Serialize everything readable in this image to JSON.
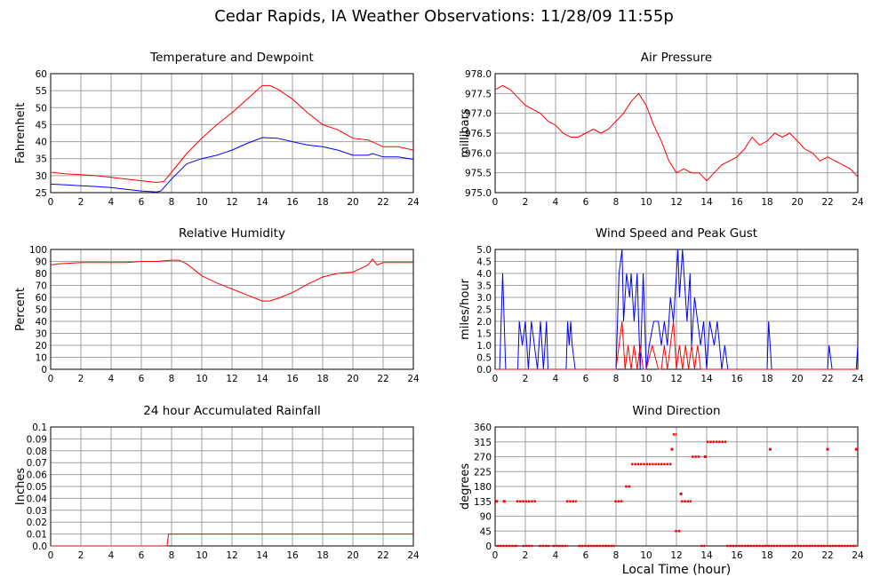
{
  "page": {
    "title": "Cedar Rapids, IA Weather Observations: 11/28/09 11:55p",
    "xlabel": "Local Time (hour)"
  },
  "colors": {
    "red": "#ff0000",
    "blue": "#0000ff",
    "grid": "#a0a0a0"
  },
  "chart_data": [
    {
      "id": "temp",
      "type": "line",
      "title": "Temperature and Dewpoint",
      "ylabel": "Fahrenheit",
      "xlim": [
        0,
        24
      ],
      "ylim": [
        25,
        60
      ],
      "xticks": [
        0,
        2,
        4,
        6,
        8,
        10,
        12,
        14,
        16,
        18,
        20,
        22,
        24
      ],
      "yticks": [
        25,
        30,
        35,
        40,
        45,
        50,
        55,
        60
      ],
      "grid": true,
      "series": [
        {
          "color": "#ff0000",
          "x": [
            0,
            1,
            2,
            3,
            4,
            5,
            6,
            7,
            7.5,
            8,
            9,
            10,
            11,
            12,
            13,
            14,
            14.5,
            15,
            16,
            17,
            18,
            19,
            20,
            21,
            22,
            23,
            24
          ],
          "y": [
            31,
            30.5,
            30.3,
            30,
            29.5,
            29,
            28.5,
            28,
            28.3,
            31,
            36.5,
            41,
            45,
            48.5,
            52.5,
            56.5,
            56.5,
            55.5,
            52.5,
            48.5,
            45,
            43.5,
            41,
            40.5,
            38.5,
            38.5,
            37.5
          ]
        },
        {
          "color": "#0000ff",
          "x": [
            0,
            1,
            2,
            3,
            4,
            5,
            6,
            7,
            7.3,
            8,
            9,
            10,
            11,
            12,
            13,
            14,
            15,
            16,
            17,
            18,
            19,
            20,
            21,
            21.3,
            22,
            23,
            24
          ],
          "y": [
            27.5,
            27.3,
            27,
            26.8,
            26.5,
            26,
            25.5,
            25.2,
            25.5,
            29,
            33.5,
            35,
            36,
            37.5,
            39.5,
            41.2,
            41,
            40,
            39,
            38.5,
            37.5,
            36,
            36,
            36.5,
            35.5,
            35.5,
            34.8
          ]
        }
      ]
    },
    {
      "id": "pressure",
      "type": "line",
      "title": "Air Pressure",
      "ylabel": "millibars",
      "xlim": [
        0,
        24
      ],
      "ylim": [
        975.0,
        978.0
      ],
      "xticks": [
        0,
        2,
        4,
        6,
        8,
        10,
        12,
        14,
        16,
        18,
        20,
        22,
        24
      ],
      "yticks": [
        "975.0",
        "975.5",
        "976.0",
        "976.5",
        "977.0",
        "977.5",
        "978.0"
      ],
      "grid": true,
      "series": [
        {
          "color": "#ff0000",
          "x": [
            0,
            0.5,
            1,
            1.5,
            2,
            2.5,
            3,
            3.5,
            4,
            4.5,
            5,
            5.5,
            6,
            6.5,
            7,
            7.5,
            8,
            8.5,
            9,
            9.5,
            10,
            10.5,
            11,
            11.5,
            12,
            12.5,
            13,
            13.5,
            14,
            14.5,
            15,
            15.5,
            16,
            16.5,
            17,
            17.5,
            18,
            18.5,
            19,
            19.5,
            20,
            20.5,
            21,
            21.5,
            22,
            22.5,
            23,
            23.5,
            24
          ],
          "y": [
            977.6,
            977.7,
            977.6,
            977.4,
            977.2,
            977.1,
            977.0,
            976.8,
            976.7,
            976.5,
            976.4,
            976.4,
            976.5,
            976.6,
            976.5,
            976.6,
            976.8,
            977.0,
            977.3,
            977.5,
            977.2,
            976.7,
            976.3,
            975.8,
            975.5,
            975.6,
            975.5,
            975.5,
            975.3,
            975.5,
            975.7,
            975.8,
            975.9,
            976.1,
            976.4,
            976.2,
            976.3,
            976.5,
            976.4,
            976.5,
            976.3,
            976.1,
            976.0,
            975.8,
            975.9,
            975.8,
            975.7,
            975.6,
            975.4
          ]
        }
      ]
    },
    {
      "id": "rh",
      "type": "line",
      "title": "Relative Humidity",
      "ylabel": "Percent",
      "xlim": [
        0,
        24
      ],
      "ylim": [
        0,
        100
      ],
      "xticks": [
        0,
        2,
        4,
        6,
        8,
        10,
        12,
        14,
        16,
        18,
        20,
        22,
        24
      ],
      "yticks": [
        0,
        10,
        20,
        30,
        40,
        50,
        60,
        70,
        80,
        90,
        100
      ],
      "grid": true,
      "series": [
        {
          "color": "#ff0000",
          "x": [
            0,
            0.5,
            2,
            4,
            5,
            6,
            7,
            8,
            8.5,
            9,
            10,
            11,
            12,
            13,
            14,
            14.5,
            15,
            16,
            17,
            18,
            19,
            20,
            21,
            21.3,
            21.6,
            22,
            23,
            24
          ],
          "y": [
            87,
            88,
            89,
            89,
            89,
            90,
            90,
            91,
            91,
            88,
            78,
            72,
            67,
            62,
            57,
            57,
            59,
            64,
            71,
            77,
            80,
            81,
            87,
            92,
            87,
            89,
            89,
            89
          ]
        }
      ]
    },
    {
      "id": "wind",
      "type": "line",
      "title": "Wind Speed and Peak Gust",
      "ylabel": "miles/hour",
      "xlim": [
        0,
        24
      ],
      "ylim": [
        0,
        5
      ],
      "xticks": [
        0,
        2,
        4,
        6,
        8,
        10,
        12,
        14,
        16,
        18,
        20,
        22,
        24
      ],
      "yticks": [
        "0.0",
        "0.5",
        "1.0",
        "1.5",
        "2.0",
        "2.5",
        "3.0",
        "3.5",
        "4.0",
        "4.5",
        "5.0"
      ],
      "grid": true,
      "series": [
        {
          "color": "#0000ff",
          "x": [
            0,
            0.3,
            0.5,
            0.7,
            1.5,
            1.6,
            1.8,
            2.0,
            2.2,
            2.4,
            2.6,
            2.8,
            3.0,
            3.2,
            3.4,
            3.5,
            4.7,
            4.8,
            4.9,
            5.0,
            5.1,
            5.3,
            5.5,
            8.0,
            8.2,
            8.4,
            8.5,
            8.7,
            8.9,
            9.0,
            9.2,
            9.4,
            9.6,
            9.8,
            10.0,
            10.2,
            10.5,
            10.8,
            11.0,
            11.2,
            11.4,
            11.6,
            11.8,
            12.0,
            12.1,
            12.2,
            12.4,
            12.5,
            12.7,
            12.9,
            13.0,
            13.2,
            13.4,
            13.6,
            13.8,
            14.0,
            14.2,
            14.5,
            14.7,
            15.0,
            15.2,
            15.4,
            18.0,
            18.1,
            18.3,
            22.0,
            22.1,
            22.3,
            23.9,
            24.0
          ],
          "y": [
            0,
            0,
            4,
            0,
            0,
            2,
            1,
            2,
            0,
            2,
            1,
            0,
            2,
            0,
            2,
            0,
            0,
            2,
            1,
            2,
            1,
            0,
            0,
            0,
            4,
            5,
            2,
            4,
            3,
            4,
            2,
            4,
            0,
            4,
            0,
            1,
            2,
            2,
            1,
            2,
            1,
            3,
            2,
            4,
            5,
            3,
            5,
            4,
            2,
            4,
            1,
            3,
            2,
            1,
            2,
            0,
            2,
            1,
            2,
            0,
            1,
            0,
            0,
            2,
            0,
            0,
            1,
            0,
            0,
            1
          ]
        },
        {
          "color": "#ff0000",
          "x": [
            0,
            8.0,
            8.2,
            8.4,
            8.6,
            8.8,
            9.0,
            9.2,
            9.4,
            9.6,
            9.8,
            10.0,
            10.4,
            10.8,
            11.0,
            11.2,
            11.4,
            11.6,
            11.8,
            12.0,
            12.2,
            12.4,
            12.6,
            12.8,
            13.0,
            13.2,
            13.4,
            13.6,
            14.0,
            24.0
          ],
          "y": [
            0,
            0,
            1,
            2,
            0,
            1,
            0,
            1,
            0,
            1,
            0,
            0,
            1,
            0,
            0,
            1,
            0,
            1,
            2,
            0,
            1,
            0,
            1,
            0,
            1,
            0,
            1,
            0,
            0,
            0
          ]
        }
      ]
    },
    {
      "id": "rain",
      "type": "line",
      "title": "24 hour Accumulated Rainfall",
      "ylabel": "Inches",
      "xlim": [
        0,
        24
      ],
      "ylim": [
        0,
        0.1
      ],
      "xticks": [
        0,
        2,
        4,
        6,
        8,
        10,
        12,
        14,
        16,
        18,
        20,
        22,
        24
      ],
      "yticks": [
        "0.0",
        "0.01",
        "0.02",
        "0.03",
        "0.04",
        "0.05",
        "0.06",
        "0.07",
        "0.08",
        "0.09",
        "0.1"
      ],
      "grid": true,
      "series": [
        {
          "color": "#ff0000",
          "x": [
            0,
            7.7,
            7.8,
            24
          ],
          "y": [
            0,
            0,
            0.01,
            0.01
          ]
        }
      ]
    },
    {
      "id": "direction",
      "type": "scatter",
      "title": "Wind Direction",
      "ylabel": "degrees",
      "xlim": [
        0,
        24
      ],
      "ylim": [
        0,
        360
      ],
      "xticks": [
        0,
        2,
        4,
        6,
        8,
        10,
        12,
        14,
        16,
        18,
        20,
        22,
        24
      ],
      "yticks": [
        0,
        45,
        90,
        135,
        180,
        225,
        270,
        315,
        360
      ],
      "grid": true,
      "series": [
        {
          "color": "#ff0000",
          "segments": [
            {
              "x0": 0.1,
              "x1": 1.5,
              "y": 0
            },
            {
              "x0": 1.8,
              "x1": 2.5,
              "y": 0
            },
            {
              "x0": 2.9,
              "x1": 3.6,
              "y": 0
            },
            {
              "x0": 3.8,
              "x1": 4.8,
              "y": 0
            },
            {
              "x0": 5.5,
              "x1": 7.9,
              "y": 0
            },
            {
              "x0": 13.6,
              "x1": 13.9,
              "y": 0
            },
            {
              "x0": 15.3,
              "x1": 23.9,
              "y": 0
            },
            {
              "x0": 1.4,
              "x1": 2.7,
              "y": 135
            },
            {
              "x0": 4.7,
              "x1": 5.4,
              "y": 135
            },
            {
              "x0": 7.9,
              "x1": 8.5,
              "y": 135
            },
            {
              "x0": 12.3,
              "x1": 13.0,
              "y": 135
            },
            {
              "x0": 8.6,
              "x1": 9.0,
              "y": 180
            },
            {
              "x0": 9.0,
              "x1": 11.7,
              "y": 247.5
            },
            {
              "x0": 13.0,
              "x1": 13.6,
              "y": 270
            },
            {
              "x0": 14.0,
              "x1": 15.3,
              "y": 315
            },
            {
              "x0": 11.9,
              "x1": 12.3,
              "y": 45
            },
            {
              "x0": 11.75,
              "x1": 12.0,
              "y": 337.5
            }
          ],
          "points": [
            {
              "x": 0.1,
              "y": 135
            },
            {
              "x": 0.6,
              "y": 135
            },
            {
              "x": 11.7,
              "y": 292.5
            },
            {
              "x": 12.3,
              "y": 157.5
            },
            {
              "x": 13.9,
              "y": 270
            },
            {
              "x": 18.2,
              "y": 292.5
            },
            {
              "x": 22.0,
              "y": 292.5
            },
            {
              "x": 23.9,
              "y": 292.5
            }
          ]
        }
      ]
    }
  ]
}
